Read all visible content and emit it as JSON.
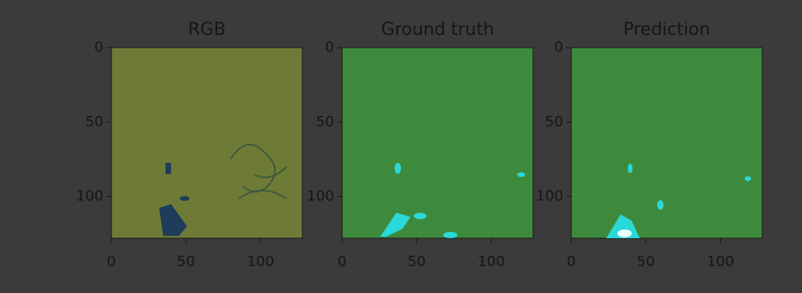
{
  "chart_data": [
    {
      "type": "image",
      "title": "RGB",
      "color": "#6e7b36",
      "xlim": [
        0,
        128
      ],
      "ylim": [
        128,
        0
      ],
      "xticks": [
        0,
        50,
        100
      ],
      "yticks": [
        0,
        50,
        100
      ]
    },
    {
      "type": "image",
      "title": "Ground truth",
      "color": "#3d8a3d",
      "xlim": [
        0,
        128
      ],
      "ylim": [
        128,
        0
      ],
      "xticks": [
        0,
        50,
        100
      ],
      "yticks": [
        0,
        50,
        100
      ]
    },
    {
      "type": "image",
      "title": "Prediction",
      "color": "#3d8a3d",
      "xlim": [
        0,
        128
      ],
      "ylim": [
        128,
        0
      ],
      "xticks": [
        0,
        50,
        100
      ],
      "yticks": [
        0,
        50,
        100
      ]
    }
  ]
}
